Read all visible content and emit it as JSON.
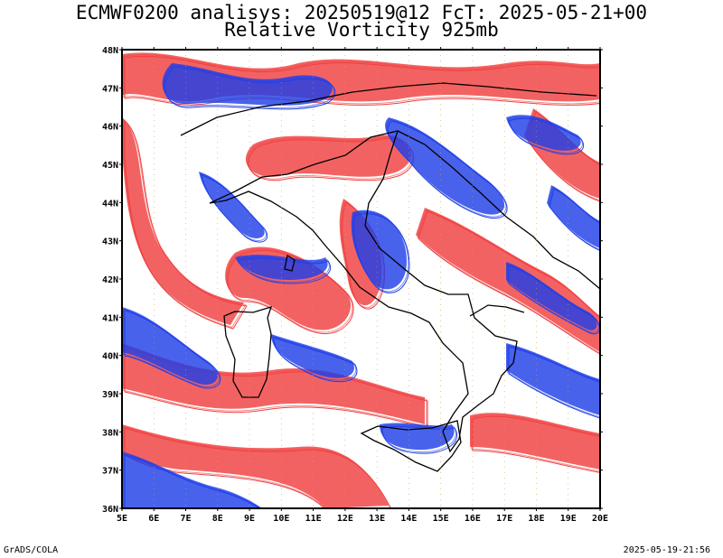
{
  "header": {
    "title": "ECMWF0200 analisys: 20250519@12 FcT: 2025-05-21+00",
    "subtitle": "Relative Vorticity 925mb"
  },
  "footer": {
    "left": "GrADS/COLA",
    "right": "2025-05-19-21:56"
  },
  "map": {
    "lat_labels": [
      "48N",
      "47N",
      "46N",
      "45N",
      "44N",
      "43N",
      "42N",
      "41N",
      "40N",
      "39N",
      "38N",
      "37N",
      "36N"
    ],
    "lon_labels": [
      "5E",
      "6E",
      "7E",
      "8E",
      "9E",
      "10E",
      "11E",
      "12E",
      "13E",
      "14E",
      "15E",
      "16E",
      "17E",
      "18E",
      "19E",
      "20E"
    ],
    "colors": {
      "positive": "#f04040",
      "negative": "#2040e8",
      "coast": "#000000"
    }
  }
}
